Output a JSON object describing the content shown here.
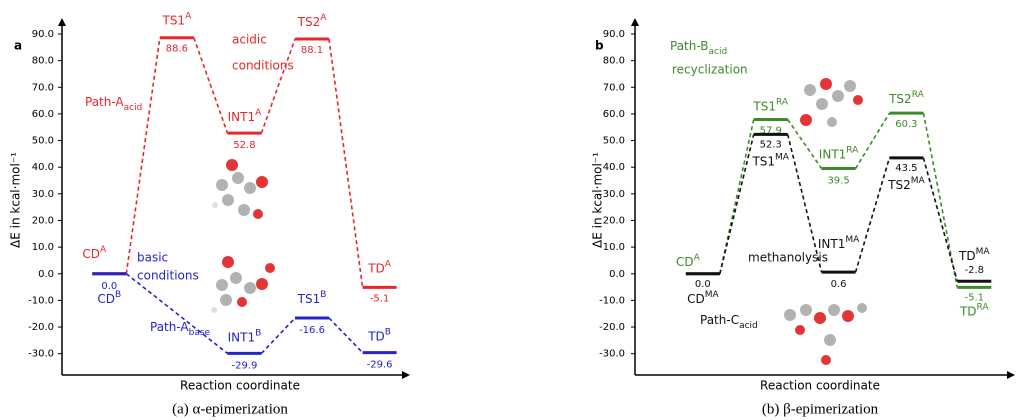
{
  "chart_data": [
    {
      "type": "energy",
      "panel": "a",
      "caption": "(a) α-epimerization",
      "x_label": "Reaction coordinate",
      "y_label": "ΔE in kcal·mol⁻¹",
      "xlim": [
        0.3,
        5.45
      ],
      "ylim": [
        -38,
        96
      ],
      "yticks": [
        {
          "value": 90,
          "label": "90.0"
        },
        {
          "value": 80,
          "label": "80.0"
        },
        {
          "value": 70,
          "label": "70.0"
        },
        {
          "value": 60,
          "label": "60.0"
        },
        {
          "value": 50,
          "label": "50.0"
        },
        {
          "value": 40,
          "label": "40.0"
        },
        {
          "value": 30,
          "label": "30.0"
        },
        {
          "value": 20,
          "label": "20.0"
        },
        {
          "value": 10,
          "label": "10.0"
        },
        {
          "value": 0,
          "label": "0.0"
        },
        {
          "value": -10,
          "label": "-10.0"
        },
        {
          "value": -20,
          "label": "-20.0"
        },
        {
          "value": -30,
          "label": "-30.0"
        }
      ],
      "series": [
        {
          "name": {
            "text": "Path-A",
            "sub": "acid"
          },
          "color": "#e8262a",
          "x": [
            1,
            2,
            3,
            4,
            5
          ],
          "values": [
            0,
            88.6,
            52.8,
            88.1,
            -5.1
          ],
          "value_labels": [
            null,
            "88.6",
            "52.8",
            "88.1",
            "-5.1"
          ],
          "states": [
            {
              "label": "CD",
              "sup": "A"
            },
            {
              "label": "TS1",
              "sup": "A"
            },
            {
              "label": "INT1",
              "sup": "A"
            },
            {
              "label": "TS2",
              "sup": "A"
            },
            {
              "label": "TD",
              "sup": "A"
            }
          ]
        },
        {
          "name": {
            "text": "Path-A",
            "sub": "base"
          },
          "color": "#2424c8",
          "x": [
            1,
            3,
            4,
            5
          ],
          "values": [
            0,
            -29.9,
            -16.6,
            -29.6
          ],
          "value_labels": [
            "0.0",
            "-29.9",
            "-16.6",
            "-29.6"
          ],
          "states": [
            {
              "label": "CD",
              "sup": "B"
            },
            {
              "label": "INT1",
              "sup": "B"
            },
            {
              "label": "TS1",
              "sup": "B"
            },
            {
              "label": "TD",
              "sup": "B"
            }
          ]
        }
      ],
      "annotations": [
        {
          "lines": [
            "acidic",
            "conditions"
          ],
          "color": "#e8262a"
        },
        {
          "lines": [
            "basic",
            "conditions"
          ],
          "color": "#2424c8"
        }
      ]
    },
    {
      "type": "energy",
      "panel": "b",
      "caption": "(b) β-epimerization",
      "x_label": "Reaction coordinate",
      "y_label": "ΔE in kcal·mol⁻¹",
      "xlim": [
        -0.0,
        5.6
      ],
      "ylim": [
        -38,
        96
      ],
      "yticks": [
        {
          "value": 90,
          "label": "90.0"
        },
        {
          "value": 80,
          "label": "80.0"
        },
        {
          "value": 70,
          "label": "70.0"
        },
        {
          "value": 60,
          "label": "60.0"
        },
        {
          "value": 50,
          "label": "50.0"
        },
        {
          "value": 40,
          "label": "40.0"
        },
        {
          "value": 30,
          "label": "30.0"
        },
        {
          "value": 20,
          "label": "20.0"
        },
        {
          "value": 10,
          "label": "10.0"
        },
        {
          "value": 0,
          "label": "0.0"
        },
        {
          "value": -10,
          "label": "-10.0"
        },
        {
          "value": -20,
          "label": "-20.0"
        },
        {
          "value": -30,
          "label": "-30.0"
        }
      ],
      "series": [
        {
          "name": {
            "text": "Path-B",
            "sub": "acid"
          },
          "color": "#3c8a2a",
          "x": [
            1,
            2,
            3,
            4,
            5
          ],
          "values": [
            0,
            57.9,
            39.5,
            60.3,
            -5.1
          ],
          "value_labels": [
            null,
            "57.9",
            "39.5",
            "60.3",
            "-5.1"
          ],
          "states": [
            {
              "label": "CD",
              "sup": "A"
            },
            {
              "label": "TS1",
              "sup": "RA"
            },
            {
              "label": "INT1",
              "sup": "RA"
            },
            {
              "label": "TS2",
              "sup": "RA"
            },
            {
              "label": "TD",
              "sup": "RA"
            }
          ]
        },
        {
          "name": {
            "text": "Path-C",
            "sub": "acid"
          },
          "color": "#111111",
          "x": [
            1,
            2,
            3,
            4,
            5
          ],
          "values": [
            0,
            52.3,
            0.6,
            43.5,
            -2.8
          ],
          "value_labels": [
            "0.0",
            "52.3",
            "0.6",
            "43.5",
            "-2.8"
          ],
          "states": [
            {
              "label": "CD",
              "sup": "MA"
            },
            {
              "label": "TS1",
              "sup": "MA"
            },
            {
              "label": "INT1",
              "sup": "MA"
            },
            {
              "label": "TS2",
              "sup": "MA"
            },
            {
              "label": "TD",
              "sup": "MA"
            }
          ]
        }
      ],
      "annotations": [
        {
          "lines": [
            "recyclization"
          ],
          "color": "#3c8a2a"
        },
        {
          "lines": [
            "methanolysis"
          ],
          "color": "#111111"
        }
      ]
    }
  ]
}
